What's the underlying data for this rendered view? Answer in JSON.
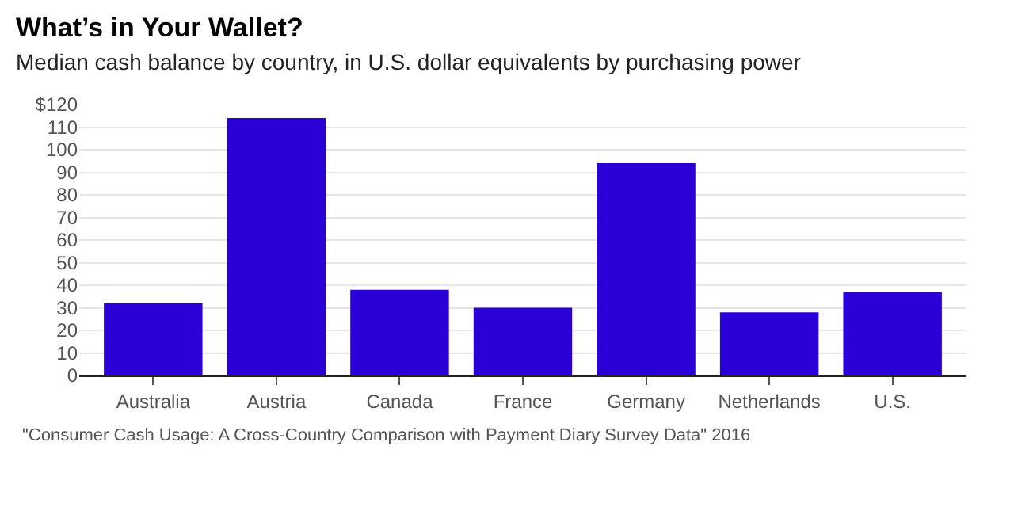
{
  "chart_data": {
    "type": "bar",
    "title": "What’s in Your Wallet?",
    "subtitle": "Median cash balance by country, in U.S. dollar equivalents by purchasing power",
    "categories": [
      "Australia",
      "Austria",
      "Canada",
      "France",
      "Germany",
      "Netherlands",
      "U.S."
    ],
    "values": [
      32,
      114,
      38,
      30,
      94,
      28,
      37
    ],
    "color": "#2a00d6",
    "ylim": [
      0,
      120
    ],
    "yticks": [
      0,
      10,
      20,
      30,
      40,
      50,
      60,
      70,
      80,
      90,
      100,
      110,
      {
        "value": 120,
        "label": "$120"
      }
    ],
    "grid": "y",
    "annotations": [
      "\"Consumer Cash Usage: A Cross-Country Comparison with Payment Diary Survey Data\" 2016"
    ]
  }
}
